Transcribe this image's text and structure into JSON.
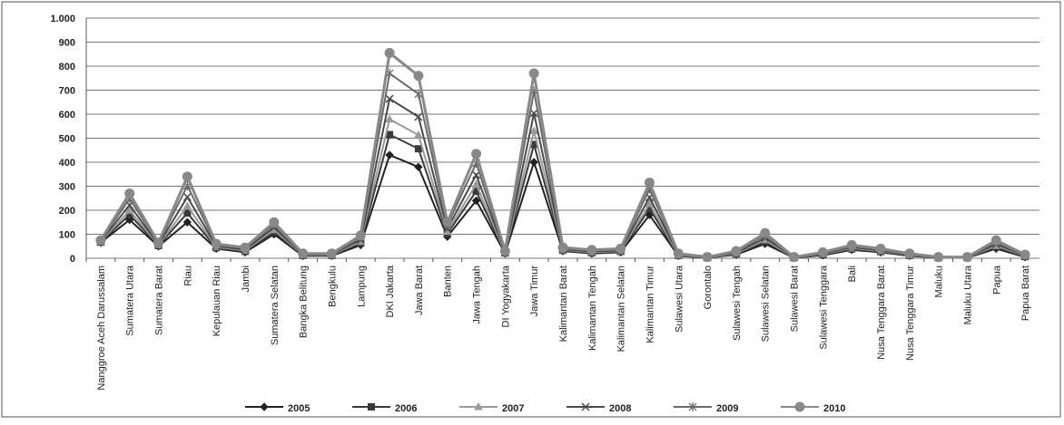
{
  "chart_data": {
    "type": "line",
    "categories": [
      "Nanggroe Aceh Darussalam",
      "Sumatera Utara",
      "Sumatera Barat",
      "Riau",
      "Kepulauan Riau",
      "Jambi",
      "Sumatera Selatan",
      "Bangka Belitung",
      "Bengkulu",
      "Lampung",
      "DKI Jakarta",
      "Jawa Barat",
      "Banten",
      "Jawa Tengah",
      "DI Yogyakarta",
      "Jawa Timur",
      "Kalimantan Barat",
      "Kalimantan Tengah",
      "Kalimantan Selatan",
      "Kalimantan Timur",
      "Sulawesi Utara",
      "Gorontalo",
      "Sulawesi Tengah",
      "Sulawesi Selatan",
      "Sulawesi Barat",
      "Sulawesi Tenggara",
      "Bali",
      "Nusa Tenggara Barat",
      "Nusa Tenggara Timur",
      "Maluku",
      "Maluku Utara",
      "Papua",
      "Papua Barat"
    ],
    "series": [
      {
        "name": "2005",
        "color": "#222222",
        "marker": "diamond",
        "values": [
          65,
          160,
          50,
          150,
          40,
          25,
          100,
          10,
          10,
          55,
          430,
          380,
          90,
          240,
          20,
          400,
          30,
          20,
          25,
          180,
          10,
          2,
          15,
          60,
          2,
          12,
          35,
          25,
          10,
          2,
          2,
          40,
          5
        ]
      },
      {
        "name": "2006",
        "color": "#3a3a3a",
        "marker": "square",
        "values": [
          67,
          182,
          53,
          188,
          44,
          29,
          110,
          12,
          12,
          63,
          515,
          456,
          102,
          279,
          22,
          474,
          33,
          23,
          28,
          207,
          12,
          3,
          18,
          69,
          3,
          15,
          39,
          28,
          12,
          3,
          3,
          47,
          7
        ]
      },
      {
        "name": "2007",
        "color": "#9a9a9a",
        "marker": "triangle",
        "values": [
          69,
          199,
          55,
          217,
          47,
          32,
          118,
          14,
          14,
          69,
          579,
          513,
          111,
          308,
          24,
          530,
          35,
          25,
          30,
          227,
          14,
          3,
          20,
          76,
          3,
          17,
          42,
          30,
          14,
          3,
          3,
          52,
          9
        ]
      },
      {
        "name": "2008",
        "color": "#4a4a4a",
        "marker": "x",
        "values": [
          71,
          221,
          58,
          255,
          51,
          36,
          128,
          16,
          16,
          77,
          664,
          589,
          123,
          347,
          26,
          604,
          38,
          28,
          33,
          254,
          16,
          4,
          23,
          85,
          4,
          19,
          46,
          33,
          16,
          4,
          4,
          59,
          11
        ]
      },
      {
        "name": "2009",
        "color": "#6a6a6a",
        "marker": "star",
        "values": [
          73,
          248,
          62,
          302,
          56,
          41,
          140,
          18,
          18,
          87,
          770,
          684,
          138,
          396,
          28,
          696,
          42,
          32,
          37,
          288,
          18,
          5,
          27,
          96,
          5,
          22,
          51,
          37,
          18,
          5,
          5,
          68,
          13
        ]
      },
      {
        "name": "2010",
        "color": "#888888",
        "marker": "circle",
        "values": [
          75,
          270,
          65,
          340,
          60,
          45,
          150,
          20,
          20,
          95,
          855,
          760,
          150,
          435,
          30,
          770,
          45,
          35,
          40,
          315,
          20,
          5,
          30,
          105,
          5,
          25,
          55,
          40,
          20,
          5,
          5,
          75,
          15
        ]
      }
    ],
    "ylim": [
      0,
      1000
    ],
    "yticks": [
      0,
      100,
      200,
      300,
      400,
      500,
      600,
      700,
      800,
      900,
      {
        "value": 1000,
        "label": "1.000"
      }
    ],
    "grid": true
  }
}
